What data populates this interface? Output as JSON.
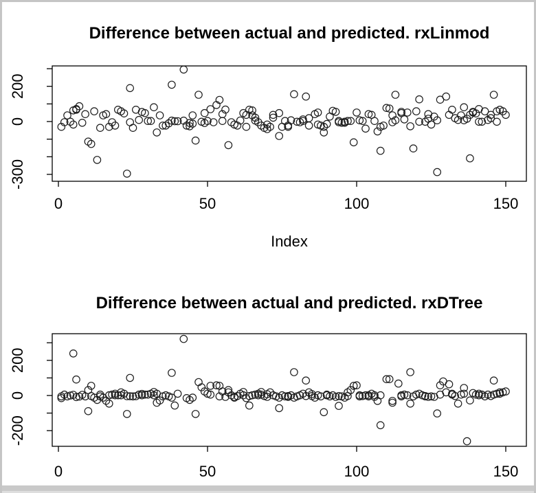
{
  "window": {
    "background": "#ffffff",
    "border_color": "#c5c5c5",
    "plot_color": "#000000"
  },
  "chart_data": [
    {
      "type": "scatter",
      "title": "Difference between actual and predicted. rxLinmod",
      "xlabel": "Index",
      "ylabel": "",
      "marker": "open-circle",
      "grid": false,
      "legend": "none",
      "xlim": [
        -5,
        157
      ],
      "ylim": [
        -335,
        315
      ],
      "xticks": [
        0,
        50,
        100,
        150
      ],
      "yticks": [
        300,
        200,
        100,
        0,
        -100,
        -200,
        -300
      ],
      "ytick_labels": [
        "",
        "200",
        "",
        "0",
        "",
        "",
        "-300"
      ],
      "points": [
        [
          1,
          -30
        ],
        [
          2,
          -4
        ],
        [
          3,
          35
        ],
        [
          4,
          -1
        ],
        [
          5,
          -17
        ],
        [
          5,
          63
        ],
        [
          6,
          67
        ],
        [
          6,
          71
        ],
        [
          7,
          87
        ],
        [
          8,
          -7
        ],
        [
          9,
          42
        ],
        [
          10,
          -114
        ],
        [
          11,
          -127
        ],
        [
          12,
          58
        ],
        [
          13,
          -218
        ],
        [
          14,
          -36
        ],
        [
          15,
          35
        ],
        [
          16,
          42
        ],
        [
          17,
          -30
        ],
        [
          18,
          -4
        ],
        [
          19,
          -23
        ],
        [
          20,
          67
        ],
        [
          21,
          58
        ],
        [
          22,
          46
        ],
        [
          23,
          -296
        ],
        [
          24,
          -4
        ],
        [
          24,
          190
        ],
        [
          25,
          -36
        ],
        [
          26,
          67
        ],
        [
          27,
          9
        ],
        [
          28,
          54
        ],
        [
          29,
          48
        ],
        [
          30,
          3
        ],
        [
          31,
          3
        ],
        [
          32,
          81
        ],
        [
          33,
          -62
        ],
        [
          34,
          35
        ],
        [
          35,
          -23
        ],
        [
          36,
          -23
        ],
        [
          37,
          -10
        ],
        [
          38,
          209
        ],
        [
          38,
          5
        ],
        [
          39,
          2
        ],
        [
          40,
          2
        ],
        [
          42,
          295
        ],
        [
          42,
          5
        ],
        [
          43,
          -23
        ],
        [
          44,
          -27
        ],
        [
          44,
          -8
        ],
        [
          45,
          -12
        ],
        [
          45,
          35
        ],
        [
          46,
          -108
        ],
        [
          47,
          152
        ],
        [
          48,
          -1
        ],
        [
          49,
          48
        ],
        [
          49,
          -8
        ],
        [
          50,
          3
        ],
        [
          51,
          70
        ],
        [
          52,
          -4
        ],
        [
          53,
          94
        ],
        [
          54,
          123
        ],
        [
          55,
          3
        ],
        [
          55,
          42
        ],
        [
          56,
          68
        ],
        [
          57,
          -134
        ],
        [
          58,
          -4
        ],
        [
          59,
          -17
        ],
        [
          60,
          -23
        ],
        [
          61,
          6
        ],
        [
          62,
          48
        ],
        [
          63,
          -30
        ],
        [
          63,
          38
        ],
        [
          64,
          67
        ],
        [
          65,
          63
        ],
        [
          65,
          35
        ],
        [
          66,
          22
        ],
        [
          66,
          6
        ],
        [
          67,
          -4
        ],
        [
          68,
          -23
        ],
        [
          69,
          -36
        ],
        [
          70,
          -43
        ],
        [
          70,
          -17
        ],
        [
          71,
          -30
        ],
        [
          72,
          22
        ],
        [
          72,
          38
        ],
        [
          74,
          -82
        ],
        [
          74,
          48
        ],
        [
          75,
          -30
        ],
        [
          76,
          3
        ],
        [
          77,
          -23
        ],
        [
          77,
          -30
        ],
        [
          78,
          7
        ],
        [
          79,
          155
        ],
        [
          80,
          -1
        ],
        [
          81,
          -4
        ],
        [
          82,
          3
        ],
        [
          82,
          12
        ],
        [
          83,
          142
        ],
        [
          84,
          19
        ],
        [
          84,
          -23
        ],
        [
          86,
          42
        ],
        [
          87,
          51
        ],
        [
          87,
          -17
        ],
        [
          88,
          -23
        ],
        [
          89,
          -30
        ],
        [
          89,
          -62
        ],
        [
          90,
          -14
        ],
        [
          91,
          28
        ],
        [
          92,
          61
        ],
        [
          93,
          55
        ],
        [
          94,
          3
        ],
        [
          94,
          -4
        ],
        [
          95,
          -7
        ],
        [
          96,
          -1
        ],
        [
          96,
          -7
        ],
        [
          97,
          3
        ],
        [
          98,
          3
        ],
        [
          99,
          -118
        ],
        [
          100,
          51
        ],
        [
          101,
          7
        ],
        [
          102,
          3
        ],
        [
          103,
          -40
        ],
        [
          104,
          42
        ],
        [
          105,
          38
        ],
        [
          106,
          3
        ],
        [
          107,
          -56
        ],
        [
          108,
          -166
        ],
        [
          108,
          -30
        ],
        [
          109,
          -23
        ],
        [
          110,
          77
        ],
        [
          111,
          74
        ],
        [
          112,
          35
        ],
        [
          112,
          -4
        ],
        [
          113,
          152
        ],
        [
          113,
          7
        ],
        [
          115,
          55
        ],
        [
          115,
          48
        ],
        [
          116,
          12
        ],
        [
          117,
          51
        ],
        [
          118,
          -27
        ],
        [
          119,
          -153
        ],
        [
          120,
          58
        ],
        [
          121,
          126
        ],
        [
          121,
          -1
        ],
        [
          123,
          -1
        ],
        [
          124,
          16
        ],
        [
          124,
          42
        ],
        [
          125,
          -17
        ],
        [
          126,
          28
        ],
        [
          127,
          -287
        ],
        [
          127,
          7
        ],
        [
          128,
          124
        ],
        [
          130,
          142
        ],
        [
          131,
          38
        ],
        [
          132,
          67
        ],
        [
          133,
          19
        ],
        [
          134,
          9
        ],
        [
          135,
          35
        ],
        [
          136,
          81
        ],
        [
          136,
          7
        ],
        [
          137,
          16
        ],
        [
          138,
          -209
        ],
        [
          138,
          38
        ],
        [
          139,
          51
        ],
        [
          139,
          55
        ],
        [
          140,
          46
        ],
        [
          141,
          -1
        ],
        [
          141,
          71
        ],
        [
          142,
          -1
        ],
        [
          143,
          58
        ],
        [
          144,
          9
        ],
        [
          145,
          19
        ],
        [
          145,
          38
        ],
        [
          146,
          152
        ],
        [
          147,
          58
        ],
        [
          147,
          -1
        ],
        [
          148,
          67
        ],
        [
          149,
          58
        ],
        [
          150,
          38
        ]
      ]
    },
    {
      "type": "scatter",
      "title": "Difference between actual and predicted. rxDTree",
      "xlabel": "",
      "ylabel": "",
      "marker": "open-circle",
      "grid": false,
      "legend": "none",
      "xlim": [
        -5,
        157
      ],
      "ylim": [
        -275,
        345
      ],
      "xticks": [
        0,
        50,
        100,
        150
      ],
      "yticks": [
        300,
        200,
        100,
        0,
        -100,
        -200
      ],
      "ytick_labels": [
        "",
        "200",
        "",
        "0",
        "",
        "-200"
      ],
      "points": [
        [
          1,
          -5
        ],
        [
          1,
          -15
        ],
        [
          2,
          5
        ],
        [
          3,
          -5
        ],
        [
          4,
          0
        ],
        [
          5,
          239
        ],
        [
          5,
          4
        ],
        [
          6,
          91
        ],
        [
          6,
          -9
        ],
        [
          7,
          -6
        ],
        [
          8,
          4
        ],
        [
          9,
          -5
        ],
        [
          10,
          31
        ],
        [
          10,
          -89
        ],
        [
          11,
          55
        ],
        [
          11,
          -3
        ],
        [
          12,
          -12
        ],
        [
          13,
          -25
        ],
        [
          14,
          -5
        ],
        [
          14,
          5
        ],
        [
          15,
          -12
        ],
        [
          16,
          -30
        ],
        [
          17,
          -46
        ],
        [
          17,
          1
        ],
        [
          18,
          5
        ],
        [
          19,
          1
        ],
        [
          19,
          10
        ],
        [
          20,
          1
        ],
        [
          21,
          18
        ],
        [
          21,
          1
        ],
        [
          22,
          10
        ],
        [
          23,
          -105
        ],
        [
          23,
          -4
        ],
        [
          24,
          100
        ],
        [
          24,
          -4
        ],
        [
          25,
          -5
        ],
        [
          26,
          -4
        ],
        [
          27,
          5
        ],
        [
          28,
          1
        ],
        [
          28,
          9
        ],
        [
          29,
          5
        ],
        [
          30,
          5
        ],
        [
          31,
          10
        ],
        [
          32,
          1
        ],
        [
          32,
          20
        ],
        [
          33,
          10
        ],
        [
          33,
          -41
        ],
        [
          34,
          -28
        ],
        [
          35,
          -5
        ],
        [
          36,
          1
        ],
        [
          37,
          -5
        ],
        [
          38,
          129
        ],
        [
          38,
          -12
        ],
        [
          39,
          -57
        ],
        [
          40,
          10
        ],
        [
          42,
          322
        ],
        [
          43,
          -15
        ],
        [
          44,
          -25
        ],
        [
          45,
          -12
        ],
        [
          46,
          -105
        ],
        [
          47,
          76
        ],
        [
          48,
          47
        ],
        [
          49,
          23
        ],
        [
          50,
          10
        ],
        [
          51,
          5
        ],
        [
          51,
          55
        ],
        [
          53,
          58
        ],
        [
          54,
          -5
        ],
        [
          54,
          55
        ],
        [
          55,
          23
        ],
        [
          56,
          -8
        ],
        [
          57,
          31
        ],
        [
          57,
          18
        ],
        [
          58,
          1
        ],
        [
          59,
          -12
        ],
        [
          59,
          -8
        ],
        [
          60,
          -3
        ],
        [
          61,
          10
        ],
        [
          62,
          20
        ],
        [
          62,
          1
        ],
        [
          63,
          -15
        ],
        [
          64,
          -3
        ],
        [
          64,
          -57
        ],
        [
          65,
          1
        ],
        [
          66,
          5
        ],
        [
          67,
          1
        ],
        [
          67,
          10
        ],
        [
          68,
          20
        ],
        [
          68,
          5
        ],
        [
          69,
          -3
        ],
        [
          70,
          -8
        ],
        [
          70,
          8
        ],
        [
          71,
          18
        ],
        [
          72,
          1
        ],
        [
          73,
          -5
        ],
        [
          74,
          -72
        ],
        [
          74,
          -12
        ],
        [
          75,
          1
        ],
        [
          76,
          -5
        ],
        [
          77,
          -8
        ],
        [
          77,
          -3
        ],
        [
          78,
          1
        ],
        [
          79,
          133
        ],
        [
          79,
          -12
        ],
        [
          80,
          -5
        ],
        [
          81,
          1
        ],
        [
          82,
          10
        ],
        [
          83,
          -3
        ],
        [
          83,
          85
        ],
        [
          84,
          18
        ],
        [
          85,
          8
        ],
        [
          85,
          -3
        ],
        [
          86,
          -12
        ],
        [
          87,
          1
        ],
        [
          88,
          -5
        ],
        [
          89,
          -95
        ],
        [
          90,
          1
        ],
        [
          90,
          5
        ],
        [
          91,
          -5
        ],
        [
          92,
          1
        ],
        [
          93,
          -8
        ],
        [
          94,
          -3
        ],
        [
          94,
          -59
        ],
        [
          95,
          -5
        ],
        [
          96,
          -12
        ],
        [
          97,
          -3
        ],
        [
          97,
          18
        ],
        [
          98,
          31
        ],
        [
          99,
          55
        ],
        [
          100,
          58
        ],
        [
          101,
          1
        ],
        [
          101,
          -5
        ],
        [
          102,
          -3
        ],
        [
          103,
          1
        ],
        [
          104,
          -5
        ],
        [
          104,
          1
        ],
        [
          105,
          10
        ],
        [
          106,
          1
        ],
        [
          106,
          -8
        ],
        [
          107,
          -31
        ],
        [
          108,
          -169
        ],
        [
          108,
          1
        ],
        [
          110,
          93
        ],
        [
          111,
          93
        ],
        [
          112,
          -31
        ],
        [
          112,
          -41
        ],
        [
          114,
          68
        ],
        [
          115,
          -5
        ],
        [
          115,
          1
        ],
        [
          116,
          5
        ],
        [
          117,
          1
        ],
        [
          118,
          133
        ],
        [
          118,
          -46
        ],
        [
          119,
          -5
        ],
        [
          120,
          5
        ],
        [
          121,
          10
        ],
        [
          122,
          1
        ],
        [
          123,
          -3
        ],
        [
          123,
          -5
        ],
        [
          124,
          -8
        ],
        [
          125,
          -5
        ],
        [
          126,
          -8
        ],
        [
          127,
          -102
        ],
        [
          128,
          58
        ],
        [
          128,
          5
        ],
        [
          129,
          80
        ],
        [
          130,
          18
        ],
        [
          131,
          64
        ],
        [
          132,
          10
        ],
        [
          132,
          5
        ],
        [
          133,
          -3
        ],
        [
          134,
          -46
        ],
        [
          135,
          5
        ],
        [
          136,
          43
        ],
        [
          136,
          10
        ],
        [
          137,
          -260
        ],
        [
          138,
          -28
        ],
        [
          139,
          14
        ],
        [
          140,
          5
        ],
        [
          141,
          10
        ],
        [
          141,
          1
        ],
        [
          142,
          5
        ],
        [
          143,
          -5
        ],
        [
          144,
          5
        ],
        [
          145,
          -3
        ],
        [
          146,
          85
        ],
        [
          146,
          5
        ],
        [
          147,
          10
        ],
        [
          148,
          18
        ],
        [
          148,
          10
        ],
        [
          149,
          18
        ],
        [
          150,
          23
        ]
      ]
    }
  ]
}
